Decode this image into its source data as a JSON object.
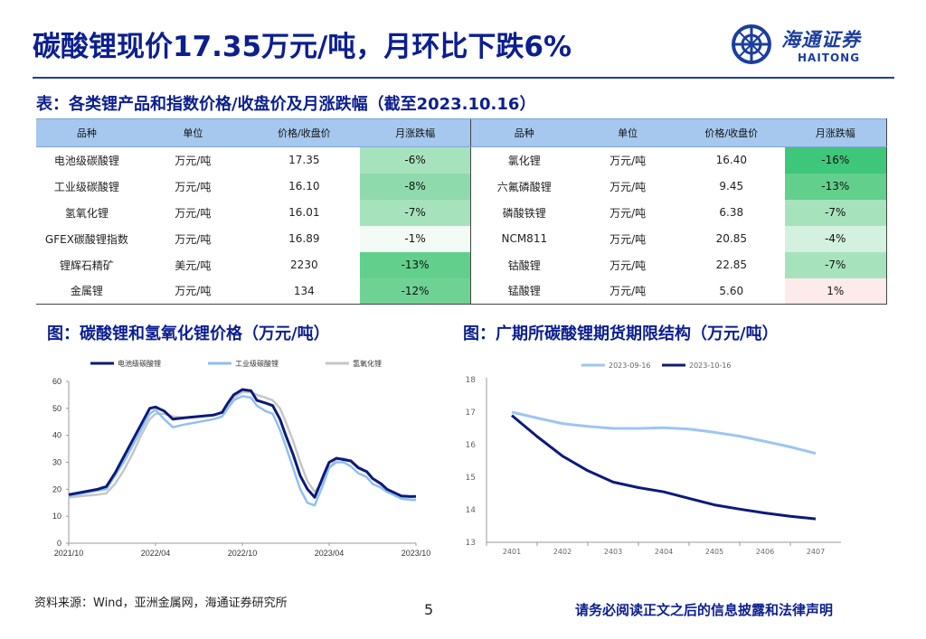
{
  "header": {
    "title": "碳酸锂现价17.35万元/吨，月环比下跌6%",
    "logo_cn": "海通证券",
    "logo_en": "HAITONG"
  },
  "table_section": {
    "title": "表：各类锂产品和指数价格/收盘价及月涨跌幅（截至2023.10.16）",
    "headers": [
      "品种",
      "单位",
      "价格/收盘价",
      "月涨跌幅",
      "品种",
      "单位",
      "价格/收盘价",
      "月涨跌幅"
    ],
    "rows": [
      {
        "l_name": "电池级碳酸锂",
        "l_unit": "万元/吨",
        "l_price": "17.35",
        "l_chg": "-6%",
        "r_name": "氯化锂",
        "r_unit": "万元/吨",
        "r_price": "16.40",
        "r_chg": "-16%"
      },
      {
        "l_name": "工业级碳酸锂",
        "l_unit": "万元/吨",
        "l_price": "16.10",
        "l_chg": "-8%",
        "r_name": "六氟磷酸锂",
        "r_unit": "万元/吨",
        "r_price": "9.45",
        "r_chg": "-13%"
      },
      {
        "l_name": "氢氧化锂",
        "l_unit": "万元/吨",
        "l_price": "16.01",
        "l_chg": "-7%",
        "r_name": "磷酸铁锂",
        "r_unit": "万元/吨",
        "r_price": "6.38",
        "r_chg": "-7%"
      },
      {
        "l_name": "GFEX碳酸锂指数",
        "l_unit": "万元/吨",
        "l_price": "16.89",
        "l_chg": "-1%",
        "r_name": "NCM811",
        "r_unit": "万元/吨",
        "r_price": "20.85",
        "r_chg": "-4%"
      },
      {
        "l_name": "锂辉石精矿",
        "l_unit": "美元/吨",
        "l_price": "2230",
        "l_chg": "-13%",
        "r_name": "钴酸锂",
        "r_unit": "万元/吨",
        "r_price": "22.85",
        "r_chg": "-7%"
      },
      {
        "l_name": "金属锂",
        "l_unit": "万元/吨",
        "l_price": "134",
        "l_chg": "-12%",
        "r_name": "锰酸锂",
        "r_unit": "万元/吨",
        "r_price": "5.60",
        "r_chg": "1%"
      }
    ],
    "colors": {
      "header_bg": "#a6c8ee",
      "deep_green": "#3ec67a",
      "mid_green": "#63cf8d",
      "light_green": "#a6e3bd",
      "pale_green": "#d3f1de",
      "pink": "#fdeaea"
    }
  },
  "left_chart": {
    "title": "图：碳酸锂和氢氧化锂价格（万元/吨）"
  },
  "right_chart": {
    "title": "图：广期所碳酸锂期货期限结构（万元/吨）"
  },
  "chart_data": [
    {
      "type": "line",
      "legend_position": "top",
      "ylim": [
        0,
        60
      ],
      "yticks": [
        0,
        10,
        20,
        30,
        40,
        50,
        60
      ],
      "xtick_labels": [
        "2021/10",
        "2022/04",
        "2022/10",
        "2023/04",
        "2023/10"
      ],
      "xtick_months": [
        0,
        6,
        12,
        18,
        24
      ],
      "x_months": [
        0,
        1,
        2,
        2.6,
        3.2,
        3.8,
        4.4,
        5,
        5.6,
        6,
        6.6,
        7.2,
        8,
        9,
        10,
        10.6,
        11,
        11.4,
        12,
        12.6,
        13,
        13.6,
        14.1,
        14.6,
        15,
        15.5,
        16,
        16.5,
        17,
        17.6,
        18,
        18.5,
        19,
        19.5,
        20,
        20.6,
        21,
        21.6,
        22,
        22.6,
        23,
        23.6,
        24
      ],
      "series": [
        {
          "name": "电池级碳酸锂",
          "color": "#0b1a7a",
          "values": [
            18,
            19,
            20,
            21,
            26,
            32,
            38,
            44,
            50,
            50.5,
            49,
            46,
            46.5,
            47,
            47.5,
            48.5,
            52,
            55,
            57,
            56.5,
            53,
            52,
            51,
            46,
            40,
            33,
            25,
            20,
            17,
            25,
            30,
            31.5,
            31,
            30.5,
            28,
            26.5,
            24,
            22,
            20,
            18.5,
            17.5,
            17.3,
            17.35
          ]
        },
        {
          "name": "工业级碳酸锂",
          "color": "#8fc0ee",
          "values": [
            17.5,
            18.5,
            19.5,
            20,
            25,
            30,
            36,
            42,
            48,
            49.5,
            46,
            43,
            44,
            45,
            46,
            47,
            50,
            53,
            54.5,
            54,
            51,
            49,
            48,
            42,
            36,
            28,
            20,
            15,
            14,
            22,
            28,
            30,
            30,
            28.5,
            26,
            24.5,
            22,
            20.5,
            19,
            17.5,
            16.5,
            16.2,
            16.1
          ]
        },
        {
          "name": "氢氧化锂",
          "color": "#c6c6c6",
          "values": [
            17,
            17.5,
            18,
            18.5,
            22,
            27,
            33,
            40,
            46,
            48,
            48,
            47,
            46.5,
            47,
            47.5,
            48.5,
            51,
            54,
            56,
            56,
            55,
            54,
            53,
            50,
            45,
            38,
            30,
            23,
            19,
            23,
            28,
            31,
            31.5,
            30.5,
            28.5,
            26.5,
            24,
            21.5,
            19.5,
            17.5,
            16.5,
            16.1,
            16.01
          ]
        }
      ]
    },
    {
      "type": "line",
      "legend_position": "top",
      "ylim": [
        13,
        18
      ],
      "yticks": [
        13,
        14,
        15,
        16,
        17,
        18
      ],
      "categories": [
        "2401",
        "2402",
        "2403",
        "2404",
        "2405",
        "2406",
        "2407"
      ],
      "series": [
        {
          "name": "2023-09-16",
          "color": "#9dc6f0",
          "x": [
            0,
            0.5,
            1,
            1.5,
            2,
            2.5,
            3,
            3.5,
            4,
            4.5,
            5,
            5.5,
            6
          ],
          "values": [
            17.0,
            16.82,
            16.65,
            16.56,
            16.5,
            16.5,
            16.52,
            16.48,
            16.38,
            16.26,
            16.1,
            15.93,
            15.73
          ]
        },
        {
          "name": "2023-10-16",
          "color": "#0b1a7a",
          "x": [
            0,
            0.5,
            1,
            1.5,
            2,
            2.5,
            3,
            3.5,
            4,
            4.5,
            5,
            5.5,
            6
          ],
          "values": [
            16.9,
            16.25,
            15.65,
            15.2,
            14.85,
            14.68,
            14.55,
            14.35,
            14.15,
            14.02,
            13.9,
            13.8,
            13.72
          ]
        }
      ]
    }
  ],
  "footer": {
    "source": "资料来源：Wind，亚洲金属网，海通证券研究所",
    "page": "5",
    "disclaimer": "请务必阅读正文之后的信息披露和法律声明"
  }
}
